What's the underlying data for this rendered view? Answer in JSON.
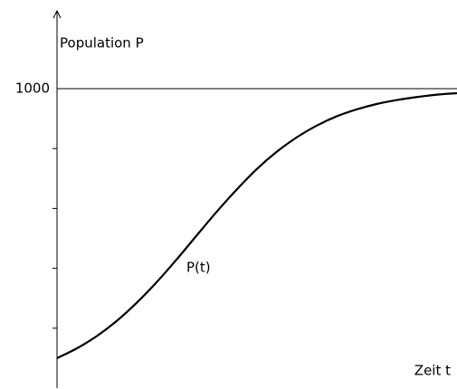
{
  "chart_data": {
    "type": "line",
    "y_label": "Population P",
    "x_label": "Zeit t",
    "xlim": [
      0,
      10
    ],
    "ylim": [
      0,
      1000
    ],
    "yticks": [
      1000
    ],
    "minor_yticks": [
      200,
      400,
      600,
      800
    ],
    "grid": true,
    "x": [
      0,
      0.5,
      1,
      1.5,
      2,
      2.5,
      3,
      3.5,
      4,
      4.5,
      5,
      5.5,
      6,
      6.5,
      7,
      7.5,
      8,
      8.5,
      9,
      9.5,
      10
    ],
    "series": [
      {
        "name": "P(t)",
        "color": "#000000",
        "values": [
          100,
          133,
          174,
          225,
          286,
          355,
          431,
          511,
          590,
          664,
          732,
          790,
          838,
          877,
          908,
          931,
          949,
          962,
          972,
          980,
          985
        ]
      }
    ]
  }
}
